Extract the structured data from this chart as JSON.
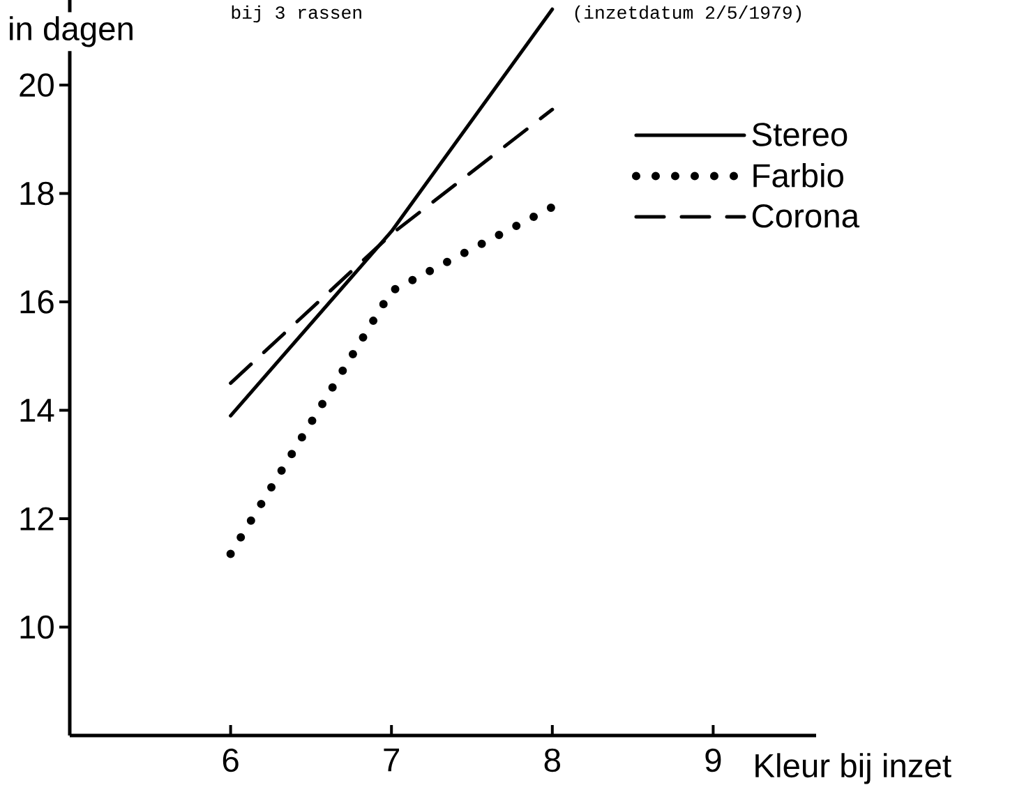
{
  "chart_data": {
    "type": "line",
    "ylabel": "in dagen",
    "xlabel": "Kleur bij inzet",
    "annotations": [
      "bij 3 rassen",
      "(inzetdatum 2/5/1979)"
    ],
    "x": [
      6,
      7,
      8
    ],
    "xlim": [
      5.0,
      9.64
    ],
    "ylim": [
      8,
      21.57
    ],
    "xticks": [
      6,
      7,
      8,
      9
    ],
    "yticks": [
      10,
      12,
      14,
      16,
      18,
      20
    ],
    "legend": "top right",
    "series": [
      {
        "name": "Stereo",
        "color": "#000000",
        "line_style": "solid",
        "values": [
          13.9,
          17.3,
          21.4
        ]
      },
      {
        "name": "Farbio",
        "color": "#000000",
        "line_style": "dotted",
        "values": [
          11.35,
          16.2,
          17.75
        ]
      },
      {
        "name": "Corona",
        "color": "#000000",
        "line_style": "dashed",
        "values": [
          14.5,
          17.25,
          19.55
        ]
      }
    ]
  }
}
